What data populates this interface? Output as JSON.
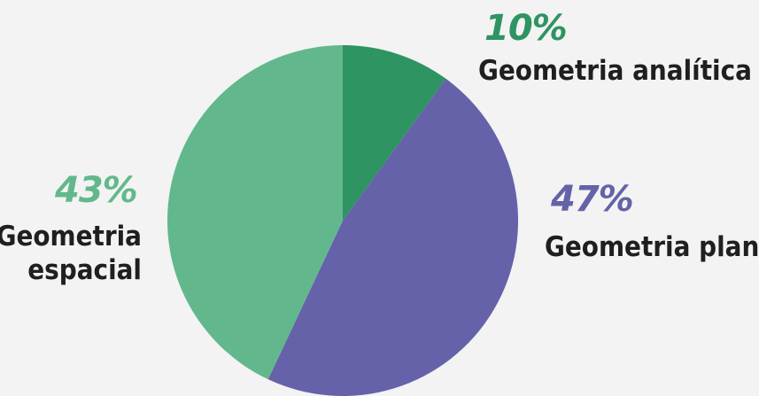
{
  "chart_data": {
    "type": "pie",
    "title": "",
    "slices": [
      {
        "label": "Geometria analítica",
        "value": 10,
        "value_label": "10%",
        "color": "#2e9461"
      },
      {
        "label": "Geometria plana",
        "value": 47,
        "value_label": "47%",
        "color": "#6562aa"
      },
      {
        "label": "Geometria espacial",
        "label_lines": [
          "Geometria",
          "espacial"
        ],
        "value": 43,
        "value_label": "43%",
        "color": "#62b88c"
      }
    ],
    "start_angle": "12 o'clock",
    "direction": "clockwise",
    "legend": "none"
  }
}
